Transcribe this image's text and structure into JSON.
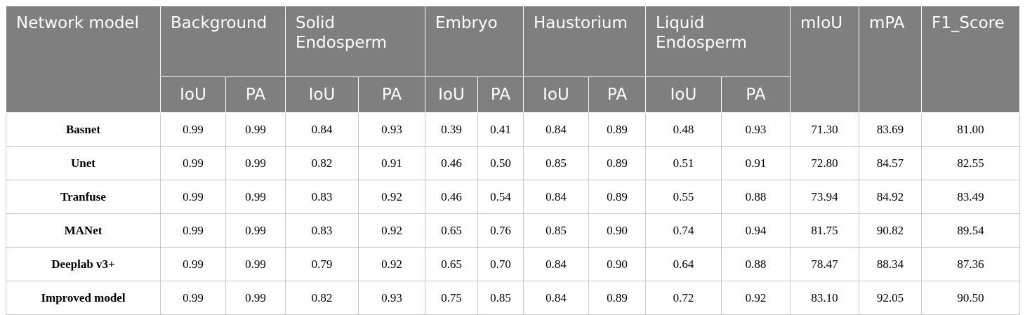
{
  "header": {
    "network_model": "Network model",
    "background": "Background",
    "solid_endosperm": "Solid Endosperm",
    "embryo": "Embryo",
    "haustorium": "Haustorium",
    "liquid_endosperm": "Liquid Endosperm",
    "miou": "mIoU",
    "mpa": "mPA",
    "f1": "F1_Score",
    "iou": "IoU",
    "pa": "PA"
  },
  "rows": [
    {
      "model": "Basnet",
      "bg_iou": "0.99",
      "bg_pa": "0.99",
      "se_iou": "0.84",
      "se_pa": "0.93",
      "em_iou": "0.39",
      "em_pa": "0.41",
      "ha_iou": "0.84",
      "ha_pa": "0.89",
      "le_iou": "0.48",
      "le_pa": "0.93",
      "miou": "71.30",
      "mpa": "83.69",
      "f1": "81.00"
    },
    {
      "model": "Unet",
      "bg_iou": "0.99",
      "bg_pa": "0.99",
      "se_iou": "0.82",
      "se_pa": "0.91",
      "em_iou": "0.46",
      "em_pa": "0.50",
      "ha_iou": "0.85",
      "ha_pa": "0.89",
      "le_iou": "0.51",
      "le_pa": "0.91",
      "miou": "72.80",
      "mpa": "84.57",
      "f1": "82.55"
    },
    {
      "model": "Tranfuse",
      "bg_iou": "0.99",
      "bg_pa": "0.99",
      "se_iou": "0.83",
      "se_pa": "0.92",
      "em_iou": "0.46",
      "em_pa": "0.54",
      "ha_iou": "0.84",
      "ha_pa": "0.89",
      "le_iou": "0.55",
      "le_pa": "0.88",
      "miou": "73.94",
      "mpa": "84.92",
      "f1": "83.49"
    },
    {
      "model": "MANet",
      "bg_iou": "0.99",
      "bg_pa": "0.99",
      "se_iou": "0.83",
      "se_pa": "0.92",
      "em_iou": "0.65",
      "em_pa": "0.76",
      "ha_iou": "0.85",
      "ha_pa": "0.90",
      "le_iou": "0.74",
      "le_pa": "0.94",
      "miou": "81.75",
      "mpa": "90.82",
      "f1": "89.54"
    },
    {
      "model": "Deeplab v3+",
      "bg_iou": "0.99",
      "bg_pa": "0.99",
      "se_iou": "0.79",
      "se_pa": "0.92",
      "em_iou": "0.65",
      "em_pa": "0.70",
      "ha_iou": "0.84",
      "ha_pa": "0.90",
      "le_iou": "0.64",
      "le_pa": "0.88",
      "miou": "78.47",
      "mpa": "88.34",
      "f1": "87.36"
    },
    {
      "model": "Improved model",
      "bg_iou": "0.99",
      "bg_pa": "0.99",
      "se_iou": "0.82",
      "se_pa": "0.93",
      "em_iou": "0.75",
      "em_pa": "0.85",
      "ha_iou": "0.84",
      "ha_pa": "0.89",
      "le_iou": "0.72",
      "le_pa": "0.92",
      "miou": "83.10",
      "mpa": "92.05",
      "f1": "90.50"
    }
  ]
}
